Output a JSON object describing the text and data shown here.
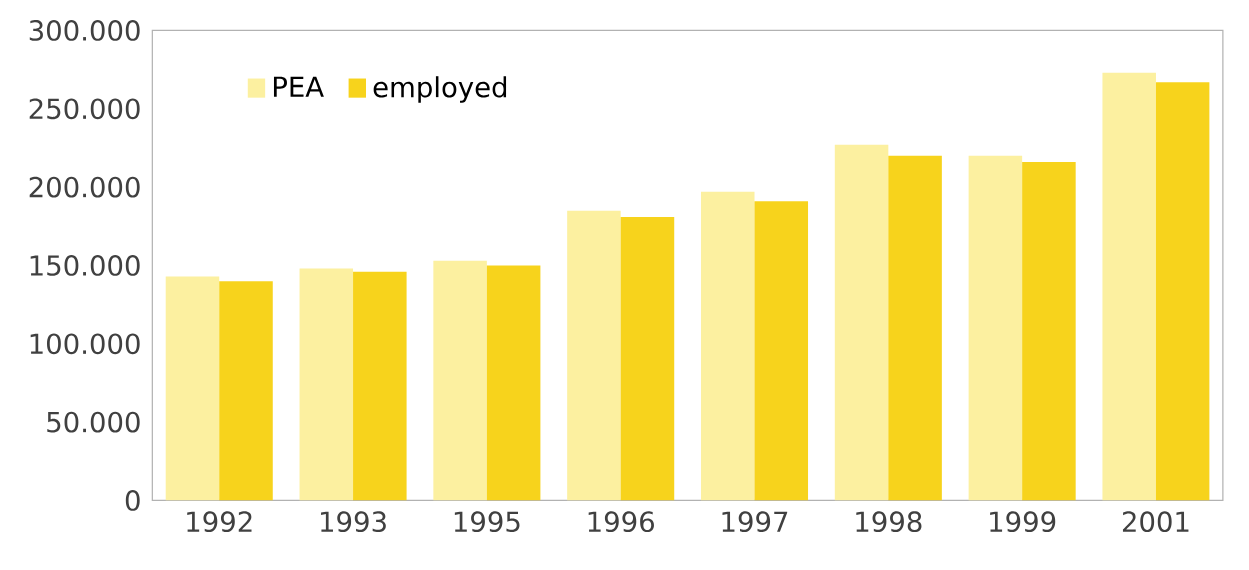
{
  "chart_data": {
    "type": "bar",
    "categories": [
      "1992",
      "1993",
      "1995",
      "1996",
      "1997",
      "1998",
      "1999",
      "2001"
    ],
    "series": [
      {
        "name": "PEA",
        "color": "#fcf0a0",
        "values": [
          143000,
          148000,
          153000,
          185000,
          197000,
          227000,
          220000,
          273000
        ]
      },
      {
        "name": "employed",
        "color": "#f7d31c",
        "values": [
          140000,
          146000,
          150000,
          181000,
          191000,
          220000,
          216000,
          267000
        ]
      }
    ],
    "ylim": [
      0,
      300000
    ],
    "yticks": [
      {
        "value": 0,
        "label": "0"
      },
      {
        "value": 50000,
        "label": "50.000"
      },
      {
        "value": 100000,
        "label": "100.000"
      },
      {
        "value": 150000,
        "label": "150.000"
      },
      {
        "value": 200000,
        "label": "200.000"
      },
      {
        "value": 250000,
        "label": "250.000"
      },
      {
        "value": 300000,
        "label": "300.000"
      }
    ],
    "legend": "top left",
    "grid": false
  }
}
